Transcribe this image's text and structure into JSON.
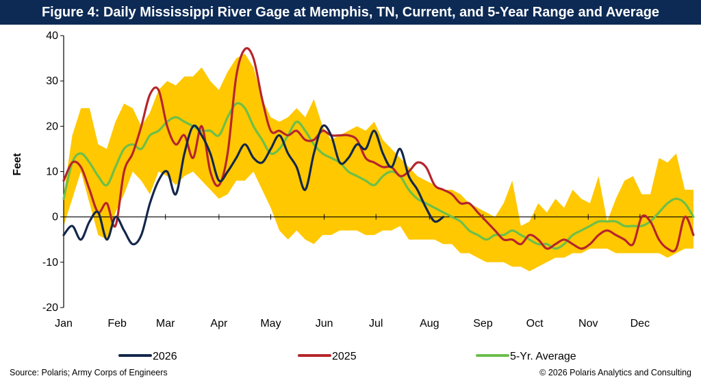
{
  "title": "Figure 4: Daily Mississippi River Gage at Memphis, TN, Current, and 5-Year Range and Average",
  "source": "Source: Polaris; Army Corps of Engineers",
  "copyright": "© 2026 Polaris Analytics and Consulting",
  "colors": {
    "title_bg": "#0d2a55",
    "range_fill": "#ffc800",
    "series_2026": "#14274a",
    "series_2025": "#b5252c",
    "series_avg": "#6cbf4a"
  },
  "chart_data": {
    "type": "line",
    "ylabel": "Feet",
    "ylim": [
      -20,
      40
    ],
    "yticks": [
      -20,
      -10,
      0,
      10,
      20,
      30,
      40
    ],
    "xlim": [
      0,
      365
    ],
    "month_labels": [
      "Jan",
      "Feb",
      "Mar",
      "Apr",
      "May",
      "Jun",
      "Jul",
      "Aug",
      "Sep",
      "Oct",
      "Nov",
      "Dec"
    ],
    "month_days": [
      0,
      31,
      59,
      90,
      120,
      151,
      181,
      212,
      243,
      273,
      304,
      334
    ],
    "range": {
      "name": "5-Year Range",
      "day": [
        0,
        5,
        10,
        15,
        20,
        25,
        30,
        35,
        40,
        45,
        50,
        55,
        60,
        65,
        70,
        75,
        80,
        85,
        90,
        95,
        100,
        105,
        110,
        115,
        120,
        125,
        130,
        135,
        140,
        145,
        150,
        155,
        160,
        165,
        170,
        175,
        180,
        185,
        190,
        195,
        200,
        205,
        210,
        215,
        220,
        225,
        230,
        235,
        240,
        245,
        250,
        255,
        260,
        265,
        270,
        275,
        280,
        285,
        290,
        295,
        300,
        305,
        310,
        315,
        320,
        325,
        330,
        335,
        340,
        345,
        350,
        355,
        360,
        365
      ],
      "high": [
        5,
        18,
        24,
        24,
        16,
        15,
        21,
        25,
        24,
        20,
        23,
        28,
        30,
        29,
        31,
        31,
        33,
        30,
        28,
        32,
        35,
        36,
        33,
        26,
        22,
        21,
        22,
        24,
        22,
        26,
        20,
        17,
        18,
        19,
        20,
        19,
        21,
        17,
        15,
        13,
        11,
        9,
        8,
        7,
        6,
        6,
        5,
        3,
        2,
        1,
        0,
        3,
        8,
        -2,
        -1,
        3,
        1,
        4,
        2,
        6,
        4,
        3,
        9,
        -1,
        4,
        8,
        9,
        5,
        5,
        13,
        12,
        14,
        6,
        6
      ],
      "low": [
        -2,
        4,
        10,
        3,
        -4,
        -5,
        1,
        5,
        10,
        8,
        5,
        10,
        9,
        7,
        9,
        10,
        8,
        6,
        4,
        5,
        8,
        8,
        10,
        6,
        2,
        -3,
        -5,
        -3,
        -5,
        -6,
        -4,
        -4,
        -3,
        -3,
        -3,
        -4,
        -4,
        -3,
        -3,
        -2,
        -5,
        -5,
        -5,
        -5,
        -6,
        -6,
        -8,
        -8,
        -9,
        -10,
        -10,
        -10,
        -11,
        -11,
        -12,
        -11,
        -10,
        -9,
        -9,
        -8,
        -8,
        -7,
        -7,
        -7,
        -8,
        -8,
        -8,
        -8,
        -8,
        -8,
        -9,
        -8,
        -7,
        -7
      ]
    },
    "series": [
      {
        "name": "2026",
        "day": [
          0,
          5,
          10,
          15,
          20,
          25,
          30,
          35,
          40,
          45,
          50,
          55,
          60,
          65,
          70,
          75,
          80,
          85,
          90,
          95,
          100,
          105,
          110,
          115,
          120,
          125,
          130,
          135,
          140,
          145,
          150,
          155,
          160,
          165,
          170,
          175,
          180,
          185,
          190,
          195,
          200,
          205,
          210,
          215,
          220
        ],
        "values": [
          -4,
          -2,
          -5,
          -1,
          1,
          -5,
          0,
          -3,
          -6,
          -4,
          3,
          8,
          10,
          5,
          14,
          20,
          18,
          14,
          8,
          10,
          13,
          16,
          13,
          12,
          15,
          18,
          14,
          11,
          6,
          14,
          20,
          18,
          12,
          13,
          16,
          15,
          19,
          14,
          11,
          15,
          9,
          6,
          2,
          -1,
          0
        ]
      },
      {
        "name": "2025",
        "day": [
          0,
          5,
          10,
          15,
          20,
          25,
          30,
          35,
          40,
          45,
          50,
          55,
          60,
          65,
          70,
          75,
          80,
          85,
          90,
          95,
          100,
          105,
          110,
          115,
          120,
          125,
          130,
          135,
          140,
          145,
          150,
          155,
          160,
          165,
          170,
          175,
          180,
          185,
          190,
          195,
          200,
          205,
          210,
          215,
          220,
          225,
          230,
          235,
          240,
          245,
          250,
          255,
          260,
          265,
          270,
          275,
          280,
          285,
          290,
          295,
          300,
          305,
          310,
          315,
          320,
          325,
          330,
          335,
          340,
          345,
          350,
          355,
          360,
          365
        ],
        "values": [
          8,
          12,
          11,
          6,
          1,
          3,
          -2,
          10,
          14,
          20,
          27,
          28,
          20,
          16,
          18,
          13,
          20,
          10,
          7,
          14,
          31,
          37,
          35,
          26,
          19,
          19,
          18,
          19,
          17,
          17,
          19,
          18,
          18,
          18,
          17,
          13,
          12,
          11,
          11,
          9,
          10,
          12,
          11,
          7,
          6,
          5,
          3,
          3,
          1,
          -1,
          -3,
          -5,
          -5,
          -6,
          -4,
          -5,
          -7,
          -6,
          -5,
          -6,
          -7,
          -6,
          -4,
          -3,
          -4,
          -5,
          -6,
          0,
          -1,
          -5,
          -7,
          -7,
          0,
          -4
        ]
      },
      {
        "name": "5-Yr. Average",
        "day": [
          0,
          5,
          10,
          15,
          20,
          25,
          30,
          35,
          40,
          45,
          50,
          55,
          60,
          65,
          70,
          75,
          80,
          85,
          90,
          95,
          100,
          105,
          110,
          115,
          120,
          125,
          130,
          135,
          140,
          145,
          150,
          155,
          160,
          165,
          170,
          175,
          180,
          185,
          190,
          195,
          200,
          205,
          210,
          215,
          220,
          225,
          230,
          235,
          240,
          245,
          250,
          255,
          260,
          265,
          270,
          275,
          280,
          285,
          290,
          295,
          300,
          305,
          310,
          315,
          320,
          325,
          330,
          335,
          340,
          345,
          350,
          355,
          360,
          365
        ],
        "values": [
          4,
          12,
          14,
          12,
          9,
          7,
          11,
          15,
          16,
          15,
          18,
          19,
          21,
          22,
          21,
          20,
          19,
          19,
          18,
          22,
          25,
          24,
          20,
          17,
          14,
          15,
          18,
          21,
          19,
          16,
          14,
          13,
          12,
          10,
          9,
          8,
          7,
          9,
          10,
          9,
          6,
          4,
          3,
          2,
          1,
          0,
          -1,
          -3,
          -4,
          -5,
          -4,
          -4,
          -3,
          -4,
          -5,
          -6,
          -6,
          -7,
          -6,
          -4,
          -3,
          -2,
          -1,
          -1,
          -1,
          -2,
          -2,
          -2,
          -1,
          1,
          3,
          4,
          3,
          0
        ]
      }
    ]
  }
}
